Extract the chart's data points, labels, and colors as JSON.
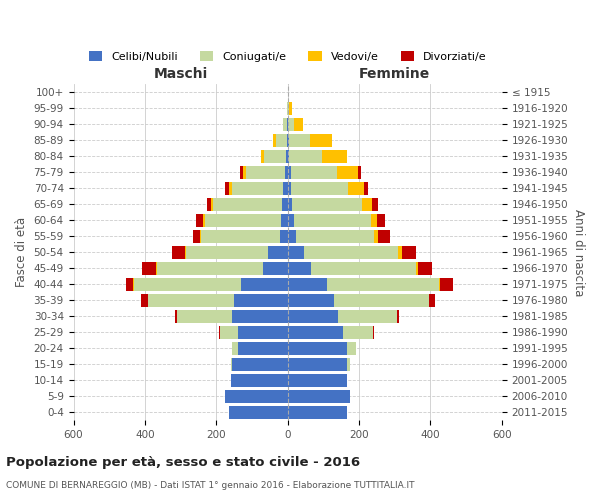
{
  "age_groups": [
    "0-4",
    "5-9",
    "10-14",
    "15-19",
    "20-24",
    "25-29",
    "30-34",
    "35-39",
    "40-44",
    "45-49",
    "50-54",
    "55-59",
    "60-64",
    "65-69",
    "70-74",
    "75-79",
    "80-84",
    "85-89",
    "90-94",
    "95-99",
    "100+"
  ],
  "birth_years": [
    "2011-2015",
    "2006-2010",
    "2001-2005",
    "1996-2000",
    "1991-1995",
    "1986-1990",
    "1981-1985",
    "1976-1980",
    "1971-1975",
    "1966-1970",
    "1961-1965",
    "1956-1960",
    "1951-1955",
    "1946-1950",
    "1941-1945",
    "1936-1940",
    "1931-1935",
    "1926-1930",
    "1921-1925",
    "1916-1920",
    "≤ 1915"
  ],
  "male": {
    "celibe": [
      165,
      175,
      160,
      155,
      140,
      140,
      155,
      150,
      130,
      70,
      55,
      22,
      18,
      15,
      12,
      8,
      5,
      3,
      2,
      0,
      0
    ],
    "coniugato": [
      0,
      0,
      0,
      5,
      15,
      50,
      155,
      240,
      300,
      295,
      230,
      220,
      215,
      195,
      145,
      110,
      60,
      30,
      10,
      2,
      0
    ],
    "vedovo": [
      0,
      0,
      0,
      0,
      0,
      0,
      0,
      0,
      2,
      3,
      3,
      3,
      5,
      5,
      8,
      8,
      10,
      8,
      2,
      0,
      0
    ],
    "divorziato": [
      0,
      0,
      0,
      0,
      0,
      2,
      5,
      20,
      20,
      40,
      35,
      20,
      18,
      12,
      10,
      8,
      0,
      0,
      0,
      0,
      0
    ]
  },
  "female": {
    "nubile": [
      165,
      175,
      165,
      165,
      165,
      155,
      140,
      130,
      110,
      65,
      45,
      22,
      18,
      12,
      10,
      8,
      5,
      3,
      2,
      0,
      0
    ],
    "coniugata": [
      0,
      0,
      0,
      10,
      25,
      85,
      165,
      265,
      315,
      295,
      265,
      220,
      215,
      195,
      160,
      130,
      90,
      60,
      15,
      5,
      0
    ],
    "vedova": [
      0,
      0,
      0,
      0,
      0,
      0,
      0,
      0,
      3,
      5,
      10,
      10,
      18,
      30,
      45,
      60,
      70,
      60,
      25,
      8,
      2
    ],
    "divorziata": [
      0,
      0,
      0,
      0,
      0,
      2,
      8,
      18,
      35,
      40,
      40,
      35,
      22,
      15,
      10,
      8,
      0,
      0,
      0,
      0,
      0
    ]
  },
  "colors": {
    "celibe": "#4472c4",
    "coniugato": "#c5d9a0",
    "vedovo": "#ffc000",
    "divorziato": "#c00000"
  },
  "xlim": 600,
  "title": "Popolazione per età, sesso e stato civile - 2016",
  "subtitle": "COMUNE DI BERNAREGGIO (MB) - Dati ISTAT 1° gennaio 2016 - Elaborazione TUTTITALIA.IT",
  "legend_labels": [
    "Celibi/Nubili",
    "Coniugati/e",
    "Vedovi/e",
    "Divorziati/e"
  ],
  "ylabel_left": "Fasce di età",
  "ylabel_right": "Anni di nascita",
  "xlabel_male": "Maschi",
  "xlabel_female": "Femmine",
  "bg_color": "#ffffff",
  "grid_color": "#cccccc",
  "bar_height": 0.8
}
